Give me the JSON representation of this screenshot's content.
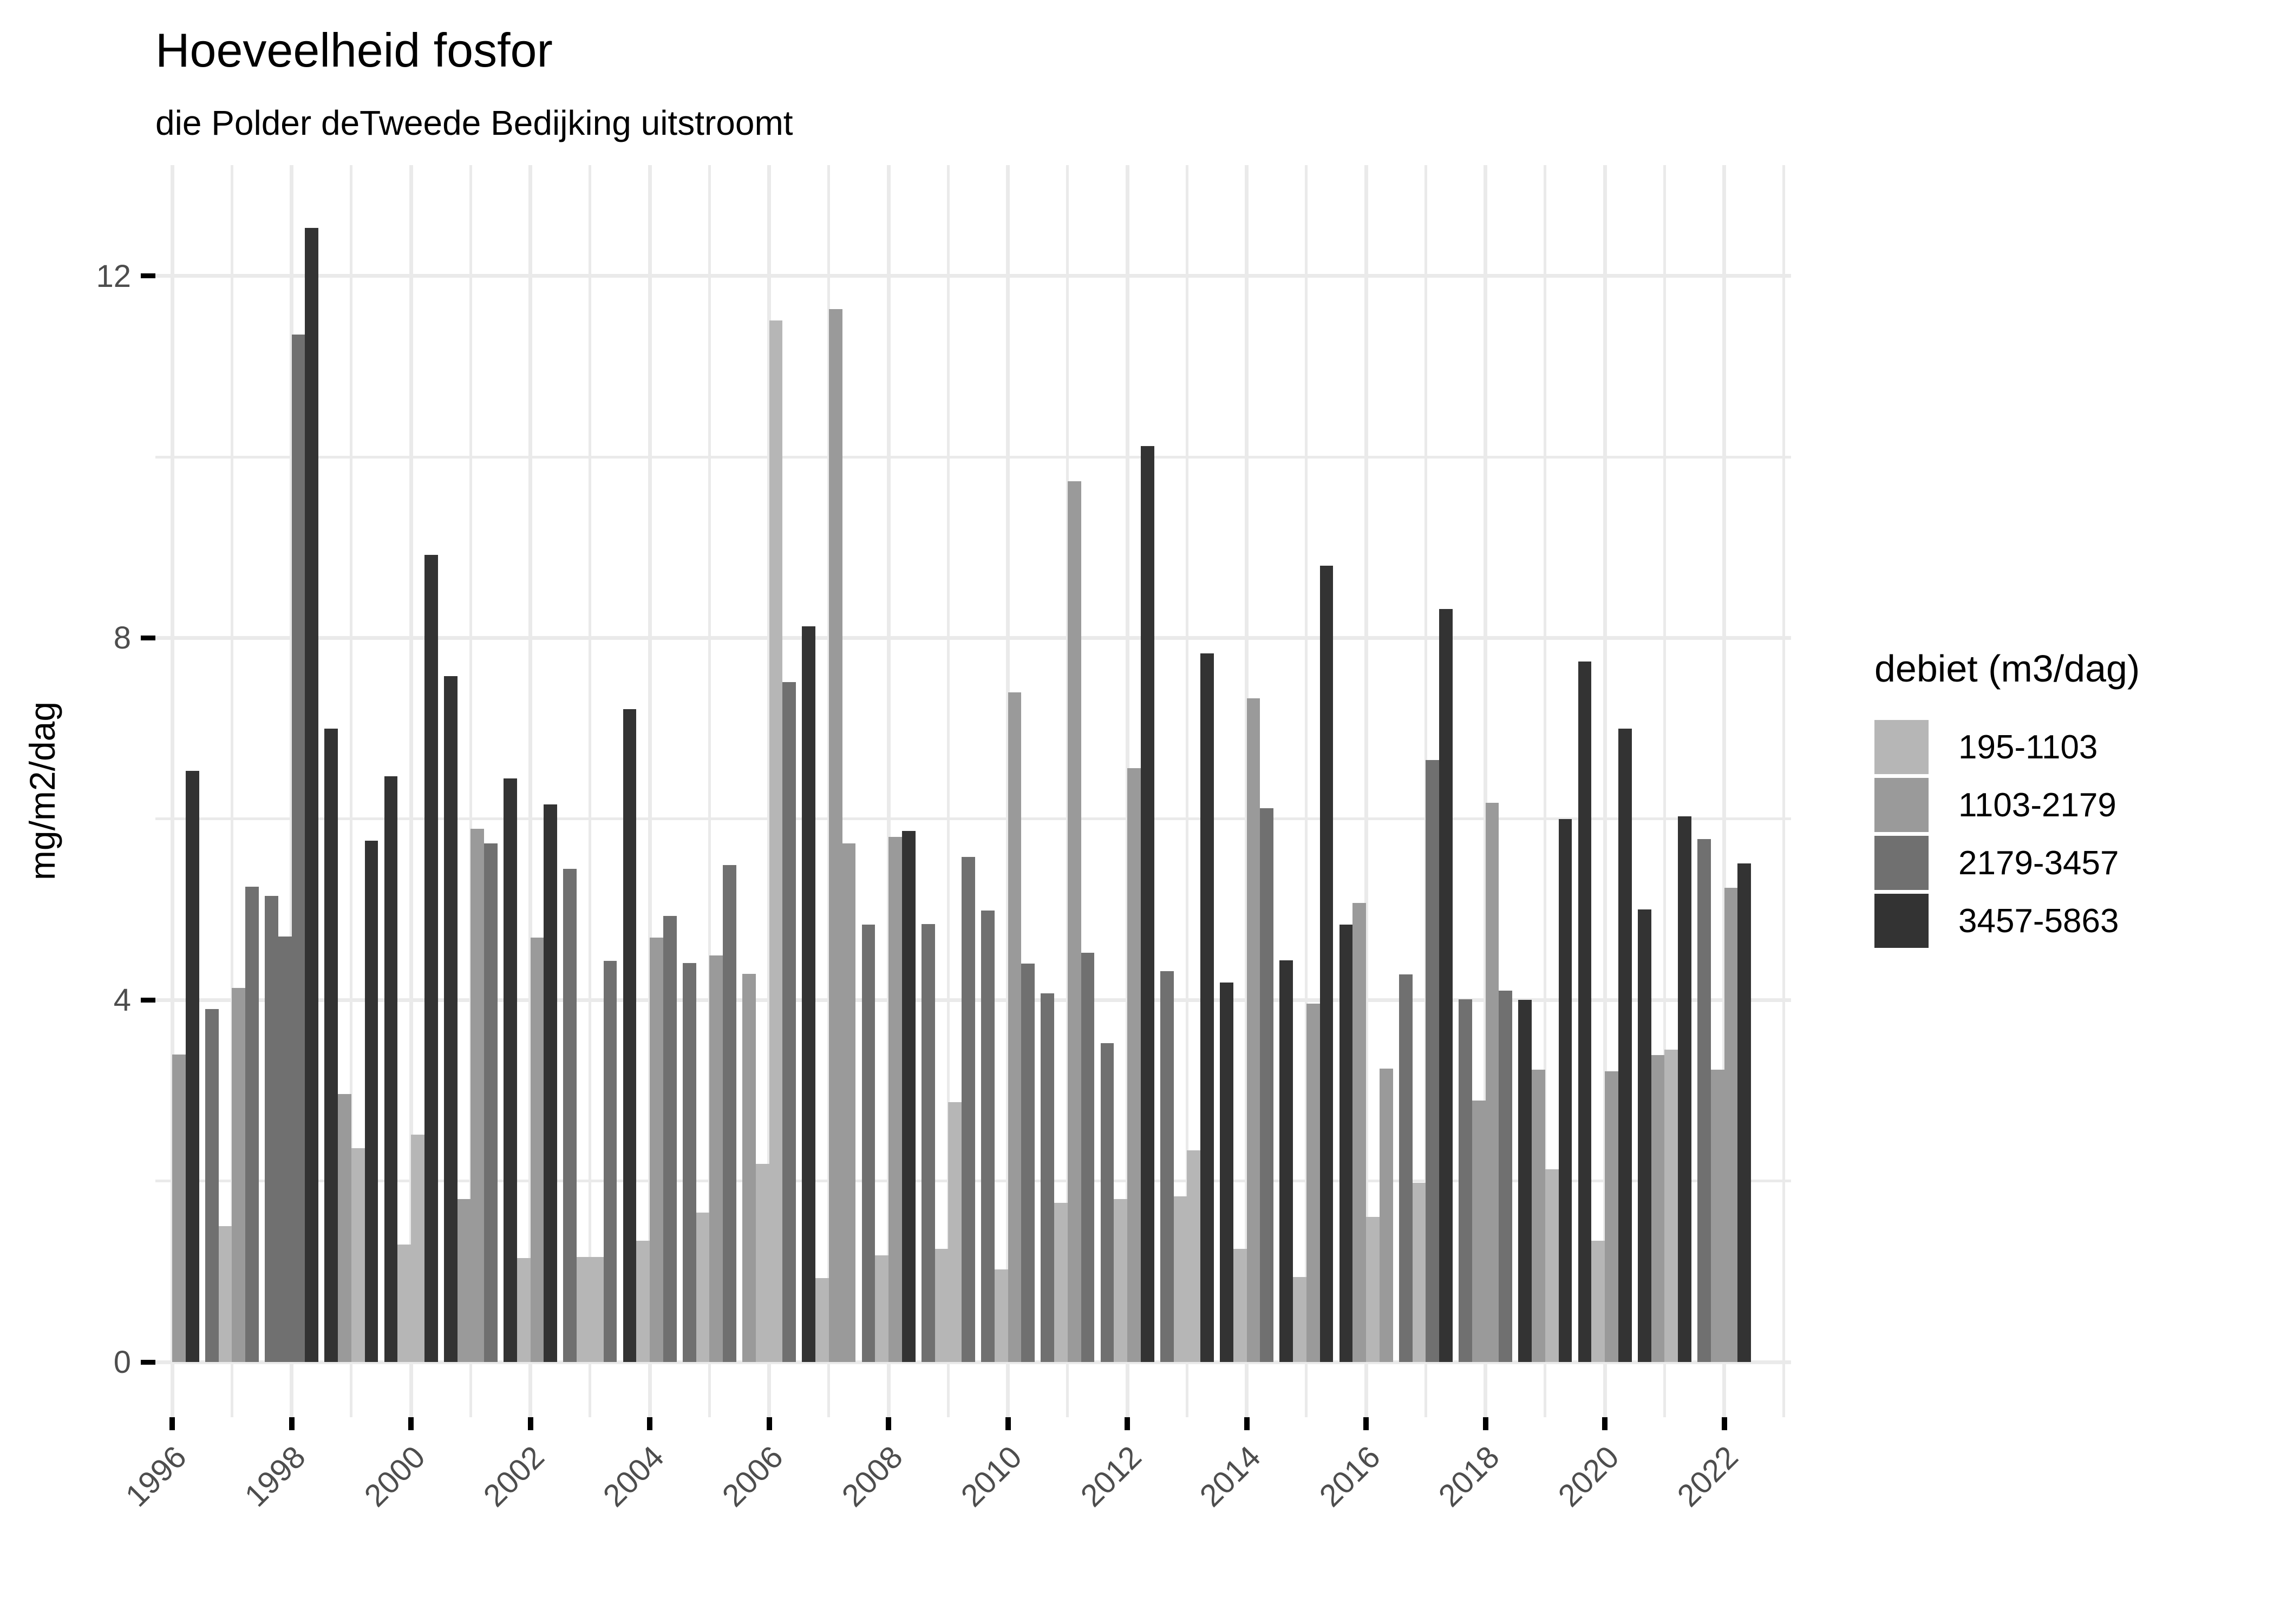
{
  "chart_data": {
    "type": "bar",
    "title": "Hoeveelheid fosfor",
    "subtitle": "die Polder deTweede Bedijking uitstroomt",
    "ylabel": "mg/m2/dag",
    "xlabel": "",
    "legend_title": "debiet (m3/dag)",
    "legend_position": "right",
    "grid": "on",
    "background_color": "#ffffff",
    "gridline_color": "#eaeaea",
    "axis_text_color": "#4d4d4d",
    "tick_color": "#000000",
    "ylim": [
      -0.66,
      13.2
    ],
    "y_major_ticks": [
      0,
      4,
      8,
      12
    ],
    "y_major_tick_labels": [
      "0",
      "4",
      "8",
      "12"
    ],
    "y_minor_ticks": [
      2,
      6,
      10
    ],
    "x_labeled_years": [
      1996,
      1998,
      2000,
      2002,
      2004,
      2006,
      2008,
      2010,
      2012,
      2014,
      2016,
      2018,
      2020,
      2022
    ],
    "x_gridline_years": [
      1996,
      1997,
      1998,
      1999,
      2000,
      2001,
      2002,
      2003,
      2004,
      2005,
      2006,
      2007,
      2008,
      2009,
      2010,
      2011,
      2012,
      2013,
      2014,
      2015,
      2016,
      2017,
      2018,
      2019,
      2020,
      2021,
      2022,
      2023
    ],
    "categories": [
      {
        "label": "195-1103",
        "color": "#b6b6b6"
      },
      {
        "label": "1103-2179",
        "color": "#9a9a9a"
      },
      {
        "label": "2179-3457",
        "color": "#707070"
      },
      {
        "label": "3457-5863",
        "color": "#333333"
      }
    ],
    "series_note": "each year has up to 4 dodged bars; v = mg/m2/dag, c = debiet category index (1-4)",
    "years": [
      {
        "year": 1996,
        "bars": [
          null,
          null,
          {
            "v": 3.4,
            "c": 2
          },
          {
            "v": 6.53,
            "c": 4
          }
        ]
      },
      {
        "year": 1997,
        "bars": [
          {
            "v": 3.9,
            "c": 3
          },
          {
            "v": 1.5,
            "c": 1
          },
          {
            "v": 4.13,
            "c": 2
          },
          {
            "v": 5.25,
            "c": 3
          }
        ]
      },
      {
        "year": 1998,
        "bars": [
          {
            "v": 5.15,
            "c": 3
          },
          {
            "v": 4.7,
            "c": 3
          },
          {
            "v": 11.35,
            "c": 3
          },
          {
            "v": 12.53,
            "c": 4
          }
        ]
      },
      {
        "year": 1999,
        "bars": [
          {
            "v": 7.0,
            "c": 4
          },
          {
            "v": 2.96,
            "c": 2
          },
          {
            "v": 2.36,
            "c": 1
          },
          {
            "v": 5.76,
            "c": 4
          }
        ]
      },
      {
        "year": 2000,
        "bars": [
          {
            "v": 6.47,
            "c": 4
          },
          {
            "v": 1.3,
            "c": 1
          },
          {
            "v": 2.51,
            "c": 1
          },
          {
            "v": 8.92,
            "c": 4
          }
        ]
      },
      {
        "year": 2001,
        "bars": [
          {
            "v": 7.58,
            "c": 4
          },
          {
            "v": 1.8,
            "c": 2
          },
          {
            "v": 5.89,
            "c": 2
          },
          {
            "v": 5.73,
            "c": 3
          }
        ]
      },
      {
        "year": 2002,
        "bars": [
          {
            "v": 6.45,
            "c": 4
          },
          {
            "v": 1.15,
            "c": 1
          },
          {
            "v": 4.69,
            "c": 2
          },
          {
            "v": 6.16,
            "c": 4
          }
        ]
      },
      {
        "year": 2003,
        "bars": [
          {
            "v": 5.45,
            "c": 3
          },
          {
            "v": 1.16,
            "c": 1
          },
          {
            "v": 1.16,
            "c": 1
          },
          {
            "v": 4.43,
            "c": 3
          }
        ]
      },
      {
        "year": 2004,
        "bars": [
          {
            "v": 7.21,
            "c": 4
          },
          {
            "v": 1.34,
            "c": 1
          },
          {
            "v": 4.69,
            "c": 2
          },
          {
            "v": 4.93,
            "c": 3
          }
        ]
      },
      {
        "year": 2005,
        "bars": [
          {
            "v": 4.41,
            "c": 3
          },
          {
            "v": 1.65,
            "c": 1
          },
          {
            "v": 4.49,
            "c": 2
          },
          {
            "v": 5.49,
            "c": 3
          }
        ]
      },
      {
        "year": 2006,
        "bars": [
          {
            "v": 4.29,
            "c": 2
          },
          {
            "v": 2.19,
            "c": 1
          },
          {
            "v": 11.51,
            "c": 1
          },
          {
            "v": 7.51,
            "c": 3
          }
        ]
      },
      {
        "year": 2007,
        "bars": [
          {
            "v": 8.13,
            "c": 4
          },
          {
            "v": 0.93,
            "c": 1
          },
          {
            "v": 11.63,
            "c": 2
          },
          {
            "v": 5.73,
            "c": 2
          }
        ]
      },
      {
        "year": 2008,
        "bars": [
          {
            "v": 4.83,
            "c": 3
          },
          {
            "v": 1.18,
            "c": 1
          },
          {
            "v": 5.8,
            "c": 2
          },
          {
            "v": 5.87,
            "c": 4
          }
        ]
      },
      {
        "year": 2009,
        "bars": [
          {
            "v": 4.84,
            "c": 3
          },
          {
            "v": 1.25,
            "c": 1
          },
          {
            "v": 2.87,
            "c": 1
          },
          {
            "v": 5.58,
            "c": 3
          }
        ]
      },
      {
        "year": 2010,
        "bars": [
          {
            "v": 4.99,
            "c": 3
          },
          {
            "v": 1.02,
            "c": 1
          },
          {
            "v": 7.4,
            "c": 2
          },
          {
            "v": 4.4,
            "c": 3
          }
        ]
      },
      {
        "year": 2011,
        "bars": [
          {
            "v": 4.07,
            "c": 3
          },
          {
            "v": 1.76,
            "c": 1
          },
          {
            "v": 9.73,
            "c": 2
          },
          {
            "v": 4.52,
            "c": 3
          }
        ]
      },
      {
        "year": 2012,
        "bars": [
          {
            "v": 3.52,
            "c": 3
          },
          {
            "v": 1.8,
            "c": 1
          },
          {
            "v": 6.56,
            "c": 2
          },
          {
            "v": 10.12,
            "c": 4
          }
        ]
      },
      {
        "year": 2013,
        "bars": [
          {
            "v": 4.32,
            "c": 3
          },
          {
            "v": 1.83,
            "c": 1
          },
          {
            "v": 2.34,
            "c": 1
          },
          {
            "v": 7.83,
            "c": 4
          }
        ]
      },
      {
        "year": 2014,
        "bars": [
          {
            "v": 4.19,
            "c": 4
          },
          {
            "v": 1.25,
            "c": 1
          },
          {
            "v": 7.33,
            "c": 2
          },
          {
            "v": 6.12,
            "c": 3
          }
        ]
      },
      {
        "year": 2015,
        "bars": [
          {
            "v": 4.44,
            "c": 4
          },
          {
            "v": 0.94,
            "c": 1
          },
          {
            "v": 3.96,
            "c": 2
          },
          {
            "v": 8.8,
            "c": 4
          }
        ]
      },
      {
        "year": 2016,
        "bars": [
          {
            "v": 4.83,
            "c": 4
          },
          {
            "v": 5.07,
            "c": 2
          },
          {
            "v": 1.6,
            "c": 1
          },
          {
            "v": 3.24,
            "c": 2
          }
        ]
      },
      {
        "year": 2017,
        "bars": [
          {
            "v": 4.28,
            "c": 3
          },
          {
            "v": 1.98,
            "c": 1
          },
          {
            "v": 6.65,
            "c": 3
          },
          {
            "v": 8.32,
            "c": 4
          }
        ]
      },
      {
        "year": 2018,
        "bars": [
          {
            "v": 4.01,
            "c": 3
          },
          {
            "v": 2.89,
            "c": 2
          },
          {
            "v": 6.18,
            "c": 2
          },
          {
            "v": 4.1,
            "c": 3
          }
        ]
      },
      {
        "year": 2019,
        "bars": [
          {
            "v": 4.0,
            "c": 4
          },
          {
            "v": 3.23,
            "c": 2
          },
          {
            "v": 2.13,
            "c": 1
          },
          {
            "v": 6.0,
            "c": 4
          }
        ]
      },
      {
        "year": 2020,
        "bars": [
          {
            "v": 7.74,
            "c": 4
          },
          {
            "v": 1.34,
            "c": 1
          },
          {
            "v": 3.21,
            "c": 2
          },
          {
            "v": 7.0,
            "c": 4
          }
        ]
      },
      {
        "year": 2021,
        "bars": [
          {
            "v": 5.0,
            "c": 4
          },
          {
            "v": 3.39,
            "c": 2
          },
          {
            "v": 3.45,
            "c": 1
          },
          {
            "v": 6.03,
            "c": 4
          }
        ]
      },
      {
        "year": 2022,
        "bars": [
          {
            "v": 5.78,
            "c": 3
          },
          {
            "v": 3.23,
            "c": 2
          },
          {
            "v": 5.24,
            "c": 2
          },
          {
            "v": 5.51,
            "c": 4
          }
        ]
      }
    ]
  }
}
